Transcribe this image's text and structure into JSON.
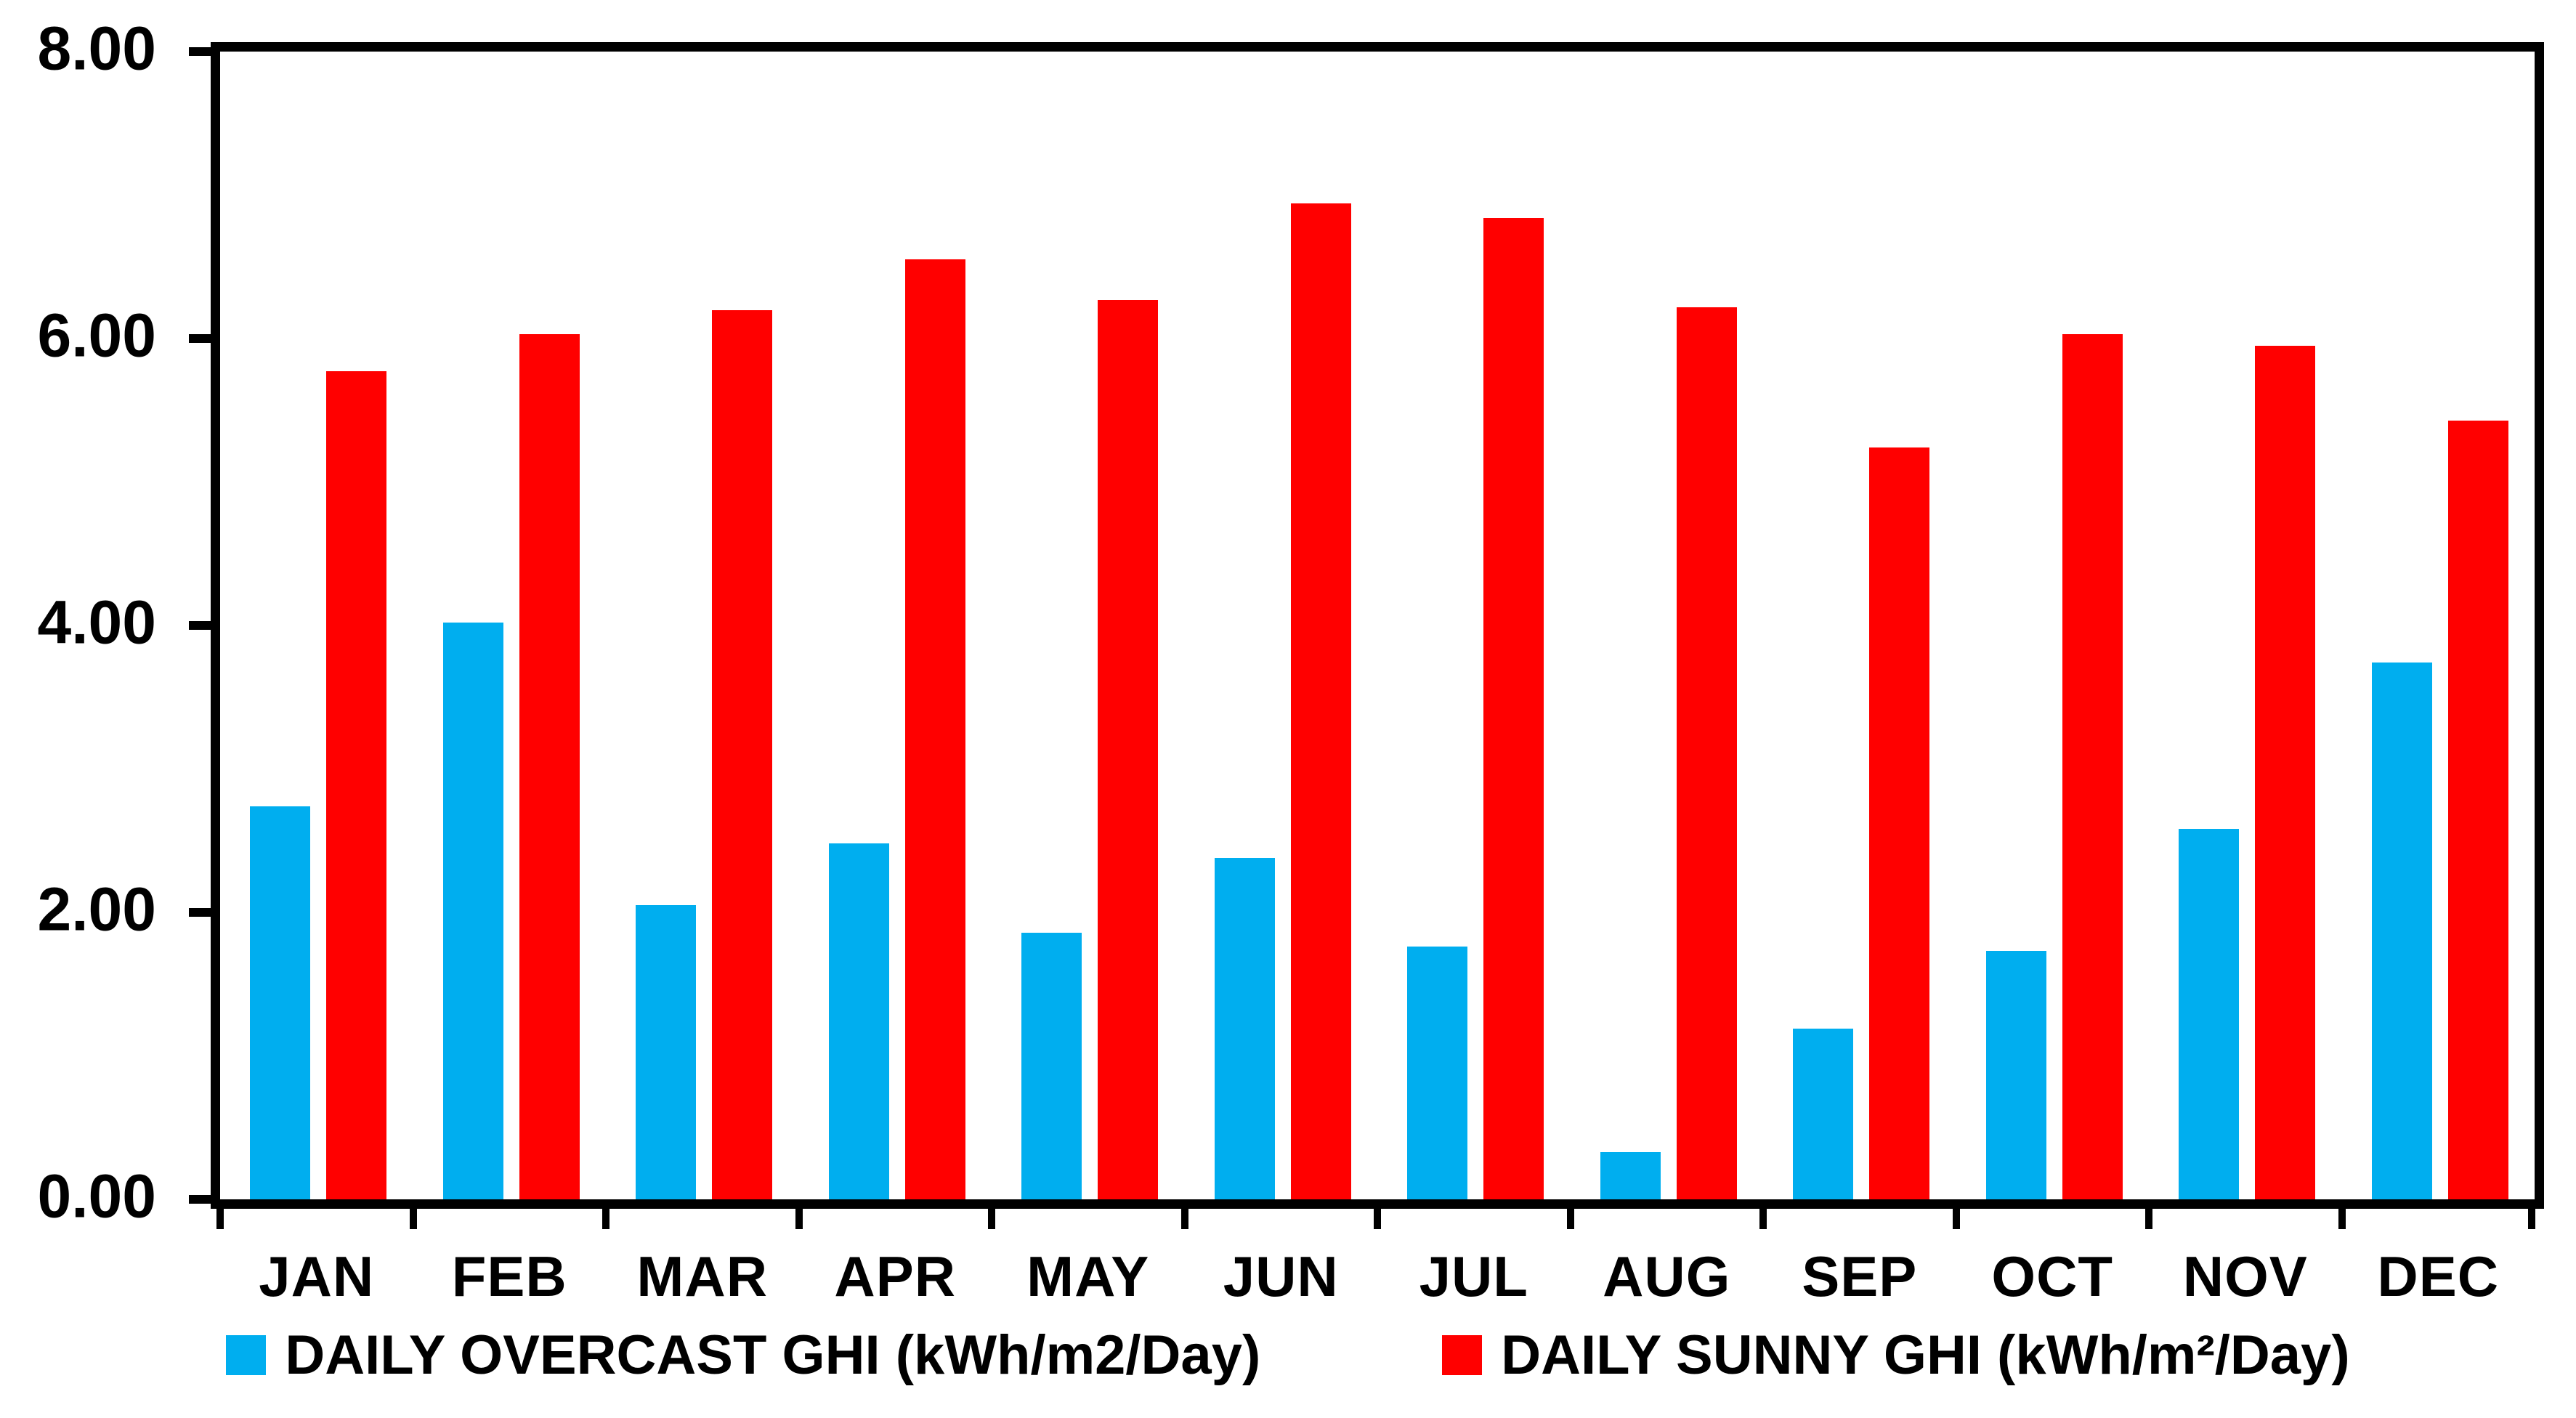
{
  "chart_data": {
    "type": "bar",
    "title": "",
    "xlabel": "",
    "ylabel": "",
    "categories": [
      "JAN",
      "FEB",
      "MAR",
      "APR",
      "MAY",
      "JUN",
      "JUL",
      "AUG",
      "SEP",
      "OCT",
      "NOV",
      "DEC"
    ],
    "series": [
      {
        "name": "DAILY OVERCAST GHI (kWh/m2/Day)",
        "color": "#00AEEF",
        "values": [
          2.74,
          4.02,
          2.05,
          2.48,
          1.86,
          2.38,
          1.76,
          0.33,
          1.19,
          1.73,
          2.58,
          3.74
        ]
      },
      {
        "name": "DAILY SUNNY GHI (kWh/m²/Day)",
        "color": "#FF0000",
        "values": [
          5.77,
          6.03,
          6.2,
          6.55,
          6.27,
          6.94,
          6.84,
          6.22,
          5.24,
          6.03,
          5.95,
          5.43
        ]
      }
    ],
    "ylim": [
      0,
      8
    ],
    "y_ticks": [
      "8.00",
      "6.00",
      "4.00",
      "2.00",
      "0.00"
    ],
    "y_tick_values": [
      8,
      6,
      4,
      2,
      0
    ],
    "grid": false,
    "legend_position": "bottom",
    "axis_color": "#000000",
    "background_color": "#ffffff"
  }
}
